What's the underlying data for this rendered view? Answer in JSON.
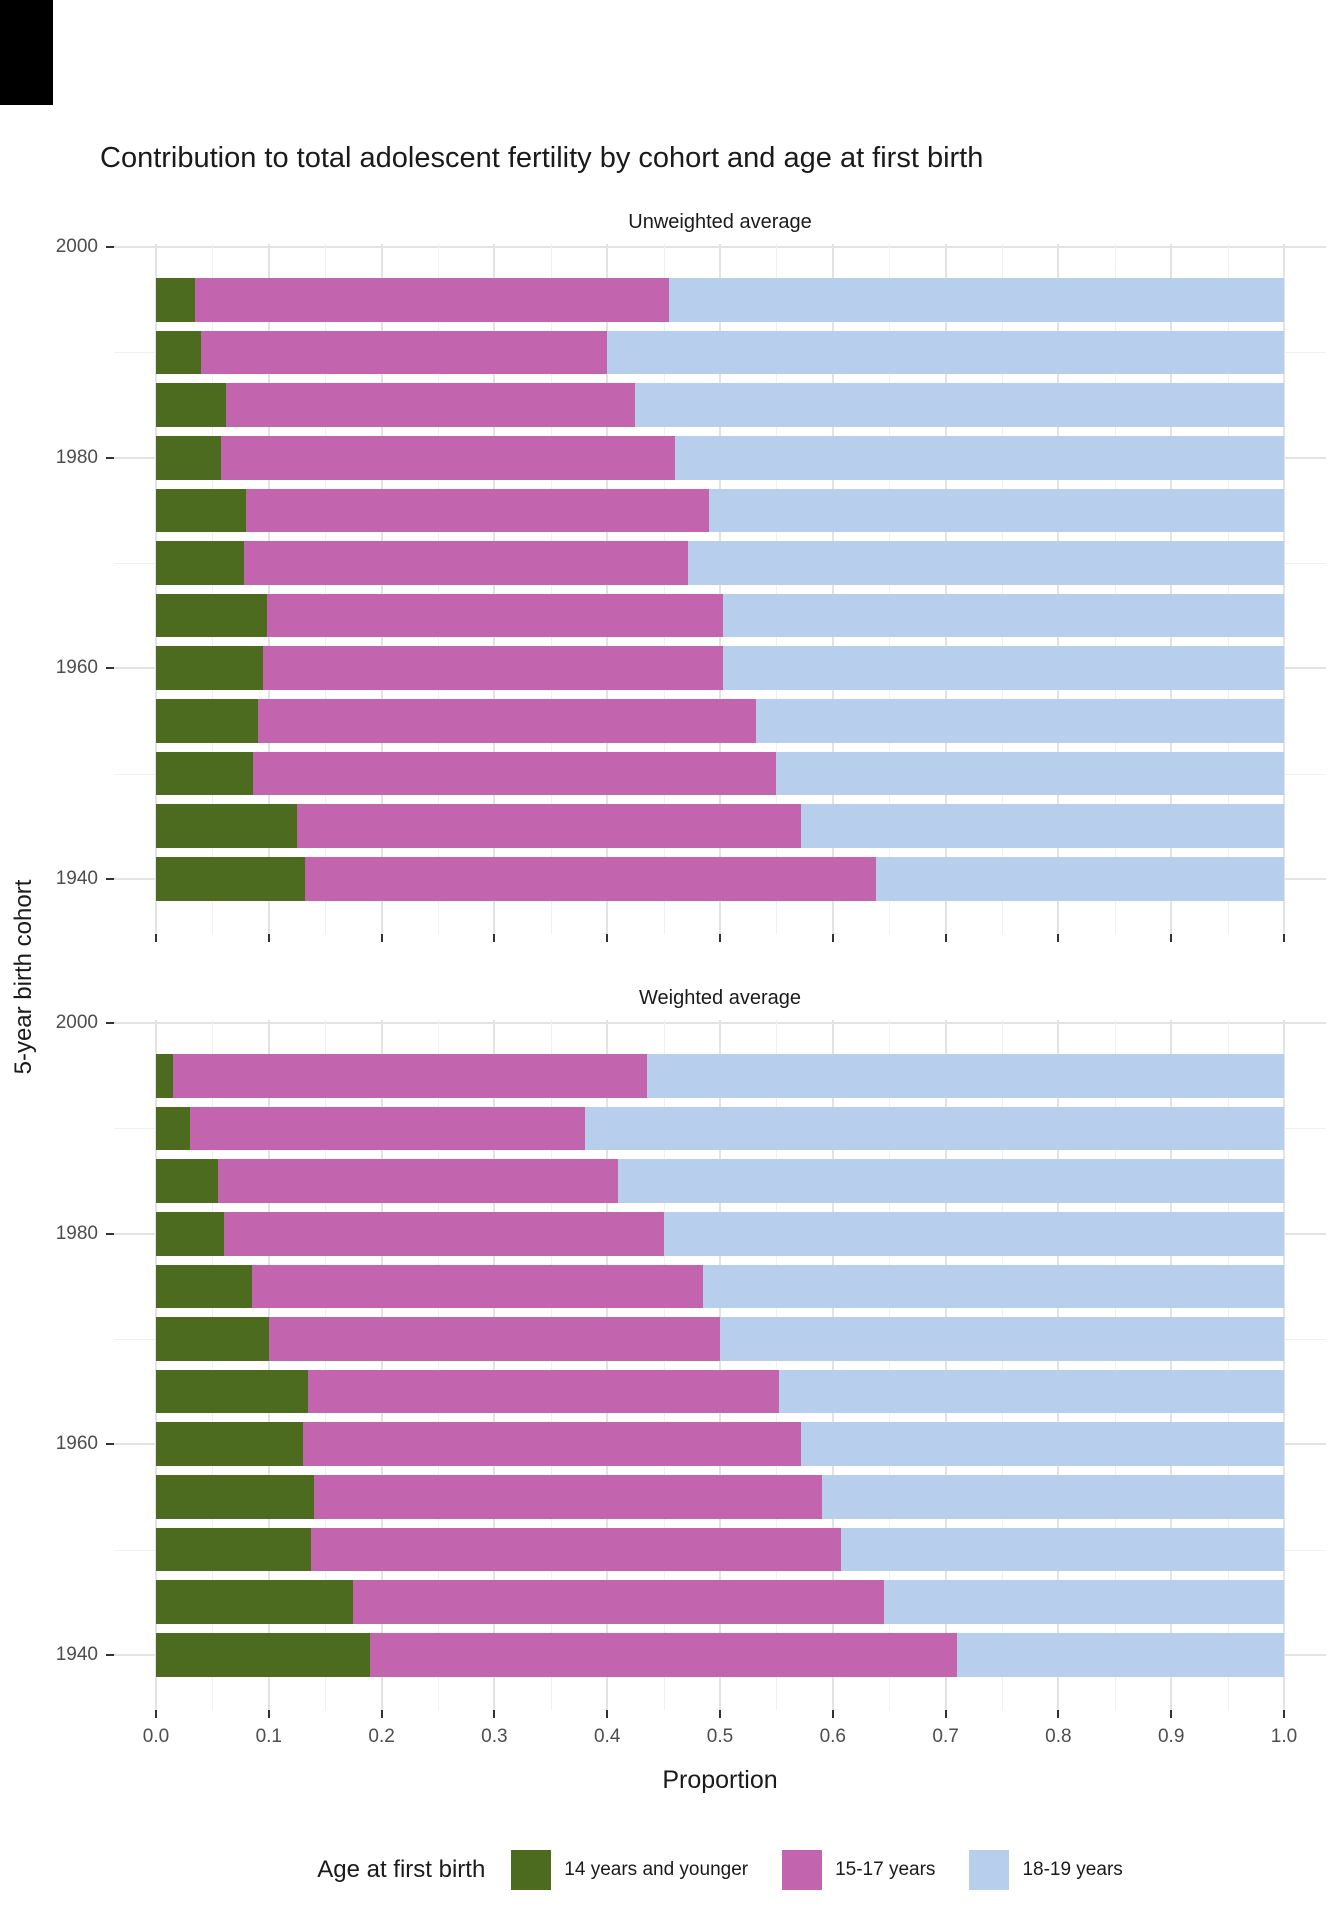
{
  "title": "Contribution to total adolescent fertility by cohort and age at first birth",
  "x_axis": {
    "label": "Proportion",
    "ticks": [
      "0.0",
      "0.1",
      "0.2",
      "0.3",
      "0.4",
      "0.5",
      "0.6",
      "0.7",
      "0.8",
      "0.9",
      "1.0"
    ]
  },
  "y_axis": {
    "label": "5-year birth cohort",
    "major_ticks": [
      2000,
      1980,
      1960,
      1940
    ],
    "minor_ticks": [
      1990,
      1970,
      1950
    ]
  },
  "legend": {
    "title": "Age at first birth",
    "items": [
      {
        "label": "14 years and younger",
        "color": "#4d6b1e"
      },
      {
        "label": "15-17 years",
        "color": "#c265ae"
      },
      {
        "label": "18-19 years",
        "color": "#b7cfec"
      }
    ]
  },
  "chart_data": [
    {
      "type": "bar",
      "orientation": "horizontal",
      "stacked": true,
      "title": "Unweighted average",
      "xlabel": "Proportion",
      "ylabel": "5-year birth cohort",
      "xlim": [
        0,
        1
      ],
      "categories": [
        1995,
        1990,
        1985,
        1980,
        1975,
        1970,
        1965,
        1960,
        1955,
        1950,
        1945,
        1940
      ],
      "series": [
        {
          "name": "14 years and younger",
          "values": [
            0.035,
            0.04,
            0.062,
            0.058,
            0.08,
            0.078,
            0.098,
            0.095,
            0.09,
            0.086,
            0.125,
            0.132
          ]
        },
        {
          "name": "15-17 years",
          "values": [
            0.42,
            0.36,
            0.363,
            0.402,
            0.41,
            0.394,
            0.405,
            0.408,
            0.442,
            0.464,
            0.447,
            0.506
          ]
        },
        {
          "name": "18-19 years",
          "values": [
            0.545,
            0.6,
            0.575,
            0.54,
            0.51,
            0.528,
            0.497,
            0.497,
            0.468,
            0.45,
            0.428,
            0.362
          ]
        }
      ]
    },
    {
      "type": "bar",
      "orientation": "horizontal",
      "stacked": true,
      "title": "Weighted average",
      "xlabel": "Proportion",
      "ylabel": "5-year birth cohort",
      "xlim": [
        0,
        1
      ],
      "categories": [
        1995,
        1990,
        1985,
        1980,
        1975,
        1970,
        1965,
        1960,
        1955,
        1950,
        1945,
        1940
      ],
      "series": [
        {
          "name": "14 years and younger",
          "values": [
            0.015,
            0.03,
            0.055,
            0.06,
            0.085,
            0.1,
            0.135,
            0.13,
            0.14,
            0.137,
            0.175,
            0.19
          ]
        },
        {
          "name": "15-17 years",
          "values": [
            0.42,
            0.35,
            0.355,
            0.39,
            0.4,
            0.4,
            0.417,
            0.442,
            0.45,
            0.47,
            0.47,
            0.52
          ]
        },
        {
          "name": "18-19 years",
          "values": [
            0.565,
            0.62,
            0.59,
            0.55,
            0.515,
            0.5,
            0.448,
            0.428,
            0.41,
            0.393,
            0.355,
            0.29
          ]
        }
      ]
    }
  ]
}
